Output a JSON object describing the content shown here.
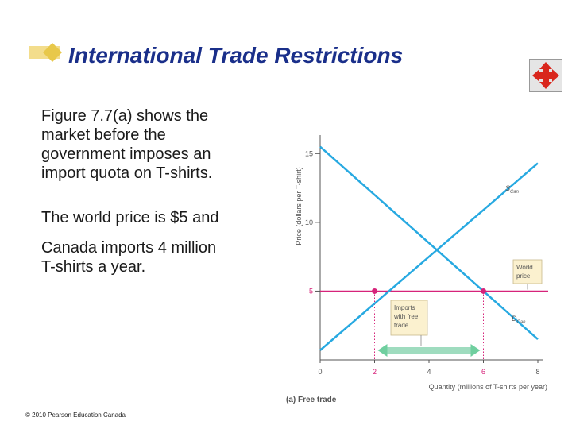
{
  "slide": {
    "title": "International Trade Restrictions",
    "paragraphs": [
      [
        "Figure 7.7(a) shows the",
        "market before the",
        "government imposes an",
        "import quota on T-shirts."
      ],
      [
        "The world price is $5  and"
      ],
      [
        "Canada imports 4 million",
        "T-shirts a year."
      ]
    ],
    "copyright": "© 2010 Pearson Education Canada",
    "nav_icon": "four-way-arrows-icon"
  },
  "chart_data": {
    "type": "line",
    "title": "(a) Free trade",
    "xlabel": "Quantity (millions of T-shirts per year)",
    "ylabel": "Price (dollars per T-shirt)",
    "xlim": [
      0,
      8
    ],
    "ylim": [
      0,
      16
    ],
    "x_ticks": [
      "0",
      "2",
      "4",
      "6",
      "8"
    ],
    "y_ticks": [
      "5",
      "10",
      "15"
    ],
    "series": [
      {
        "name": "S",
        "subscript": "Can",
        "color": "#27a9e1",
        "points": [
          [
            0,
            0.7
          ],
          [
            8,
            14.3
          ]
        ]
      },
      {
        "name": "D",
        "subscript": "Can",
        "color": "#27a9e1",
        "points": [
          [
            0,
            15.5
          ],
          [
            8,
            1.5
          ]
        ]
      }
    ],
    "world_price": {
      "value": 5,
      "color": "#d6237a"
    },
    "equilibrium_points": [
      [
        2,
        5
      ],
      [
        6,
        5
      ]
    ],
    "annotations": {
      "world_price_label": [
        "World",
        "price"
      ],
      "imports_label": [
        "Imports",
        "with free",
        "trade"
      ],
      "imports_range": [
        2,
        6
      ]
    }
  }
}
